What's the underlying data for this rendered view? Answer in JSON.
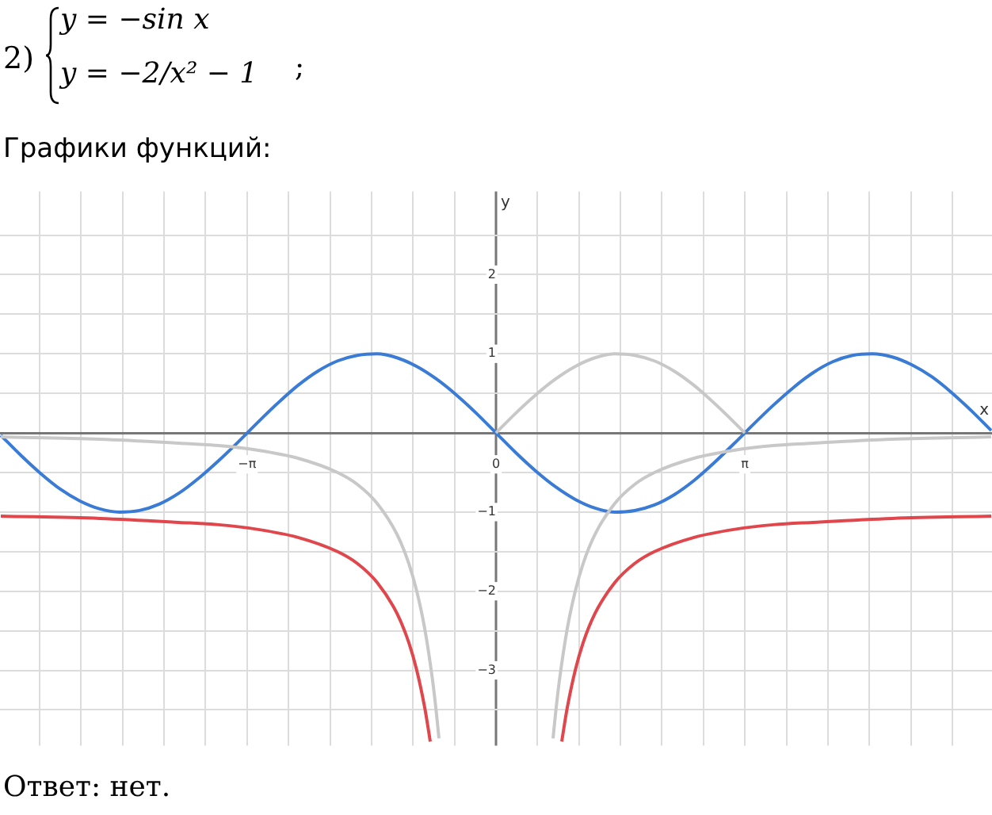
{
  "chart_data": {
    "type": "line",
    "annotations": [
      "2)",
      "y = −sin x",
      "y = −2/x² − 1",
      ";",
      "Графики функций:",
      "Ответ:  нет."
    ],
    "xlabel": "x",
    "ylabel": "y",
    "xlim": [
      -6.26,
      6.26
    ],
    "ylim": [
      -3.95,
      3.05
    ],
    "xticks": [
      {
        "value": -5.7596,
        "label": null
      },
      {
        "value": -5.236,
        "label": null
      },
      {
        "value": -4.7124,
        "label": null
      },
      {
        "value": -4.1888,
        "label": null
      },
      {
        "value": -3.6652,
        "label": null
      },
      {
        "value": -3.1416,
        "label": "−π"
      },
      {
        "value": -2.618,
        "label": null
      },
      {
        "value": -2.0944,
        "label": null
      },
      {
        "value": -1.5708,
        "label": null
      },
      {
        "value": -1.0472,
        "label": null
      },
      {
        "value": -0.5236,
        "label": null
      },
      0,
      {
        "value": 0.5236,
        "label": null
      },
      {
        "value": 1.0472,
        "label": null
      },
      {
        "value": 1.5708,
        "label": null
      },
      {
        "value": 2.0944,
        "label": null
      },
      {
        "value": 2.618,
        "label": null
      },
      {
        "value": 3.1416,
        "label": "π"
      },
      {
        "value": 3.6652,
        "label": null
      },
      {
        "value": 4.1888,
        "label": null
      },
      {
        "value": 4.7124,
        "label": null
      },
      {
        "value": 5.236,
        "label": null
      },
      {
        "value": 5.7596,
        "label": null
      }
    ],
    "yticks": [
      {
        "value": -3.5,
        "label": null
      },
      {
        "value": -3,
        "label": "−3"
      },
      {
        "value": -2.5,
        "label": null
      },
      {
        "value": -2,
        "label": "−2"
      },
      {
        "value": -1.5,
        "label": null
      },
      {
        "value": -1,
        "label": "−1"
      },
      {
        "value": -0.5,
        "label": null
      },
      {
        "value": 0,
        "label": null
      },
      {
        "value": 0.5,
        "label": null
      },
      1,
      {
        "value": 1.5,
        "label": null
      },
      2,
      {
        "value": 2.5,
        "label": null
      }
    ],
    "grid": true,
    "marker": "none",
    "series": [
      {
        "color": "#c8c8c8",
        "x": [
          -6.25,
          -5,
          -4,
          -3.5,
          -3,
          -2.5,
          -2,
          -1.75,
          -1.5,
          -1.25,
          -1.1,
          -1,
          -0.9,
          -0.8,
          -0.75,
          -0.72
        ],
        "values": [
          -0.05,
          -0.08,
          -0.13,
          -0.16,
          -0.22,
          -0.32,
          -0.5,
          -0.65,
          -0.89,
          -1.28,
          -1.65,
          -2,
          -2.47,
          -3.13,
          -3.56,
          -3.86
        ]
      },
      {
        "color": "#c8c8c8",
        "x": [
          0.72,
          0.75,
          0.8,
          0.9,
          1,
          1.1,
          1.25,
          1.5,
          1.75,
          2,
          2.5,
          3,
          3.5,
          4,
          5,
          6.25
        ],
        "values": [
          -3.86,
          -3.56,
          -3.13,
          -2.47,
          -2,
          -1.65,
          -1.28,
          -0.89,
          -0.65,
          -0.5,
          -0.32,
          -0.22,
          -0.16,
          -0.13,
          -0.08,
          -0.05
        ]
      },
      {
        "color": "#c8c8c8",
        "x": [
          0,
          0.25,
          0.5,
          0.75,
          1,
          1.25,
          1.5,
          1.75,
          2,
          2.25,
          2.5,
          2.75,
          3,
          3.14
        ],
        "values": [
          0,
          0.25,
          0.48,
          0.68,
          0.84,
          0.95,
          1.0,
          0.98,
          0.91,
          0.78,
          0.6,
          0.38,
          0.14,
          0
        ]
      },
      {
        "color": "#e0474c",
        "x": [
          -6.25,
          -5,
          -4,
          -3.5,
          -3,
          -2.5,
          -2,
          -1.75,
          -1.5,
          -1.25,
          -1.1,
          -1,
          -0.9,
          -0.85,
          -0.83
        ],
        "values": [
          -1.05,
          -1.08,
          -1.13,
          -1.16,
          -1.22,
          -1.32,
          -1.5,
          -1.65,
          -1.89,
          -2.28,
          -2.65,
          -3,
          -3.47,
          -3.77,
          -3.9
        ]
      },
      {
        "color": "#e0474c",
        "x": [
          0.83,
          0.85,
          0.9,
          1,
          1.1,
          1.25,
          1.5,
          1.75,
          2,
          2.5,
          3,
          3.5,
          4,
          5,
          6.25
        ],
        "values": [
          -3.9,
          -3.77,
          -3.47,
          -3,
          -2.65,
          -2.28,
          -1.89,
          -1.65,
          -1.5,
          -1.32,
          -1.22,
          -1.16,
          -1.13,
          -1.08,
          -1.05
        ]
      },
      {
        "color": "#3a7bd5",
        "x": [
          -6.25,
          -6,
          -5.75,
          -5.5,
          -5.25,
          -5,
          -4.75,
          -4.5,
          -4.25,
          -4,
          -3.75,
          -3.5,
          -3.25,
          -3,
          -2.75,
          -2.5,
          -2.25,
          -2,
          -1.75,
          -1.5,
          -1.25,
          -1,
          -0.75,
          -0.5,
          -0.25,
          0,
          0.25,
          0.5,
          0.75,
          1,
          1.25,
          1.5,
          1.75,
          2,
          2.25,
          2.5,
          2.75,
          3,
          3.25,
          3.5,
          3.75,
          4,
          4.25,
          4.5,
          4.75,
          5,
          5.25,
          5.5,
          5.75,
          6,
          6.25
        ],
        "values": [
          -0.03,
          -0.28,
          -0.51,
          -0.71,
          -0.86,
          -0.96,
          -1.0,
          -0.98,
          -0.9,
          -0.76,
          -0.57,
          -0.35,
          -0.11,
          0.14,
          0.38,
          0.6,
          0.78,
          0.91,
          0.98,
          1.0,
          0.95,
          0.84,
          0.68,
          0.48,
          0.25,
          0,
          -0.25,
          -0.48,
          -0.68,
          -0.84,
          -0.95,
          -1.0,
          -0.98,
          -0.91,
          -0.78,
          -0.6,
          -0.38,
          -0.14,
          0.11,
          0.35,
          0.57,
          0.76,
          0.9,
          0.98,
          1.0,
          0.96,
          0.86,
          0.71,
          0.51,
          0.28,
          0.03
        ]
      }
    ]
  }
}
